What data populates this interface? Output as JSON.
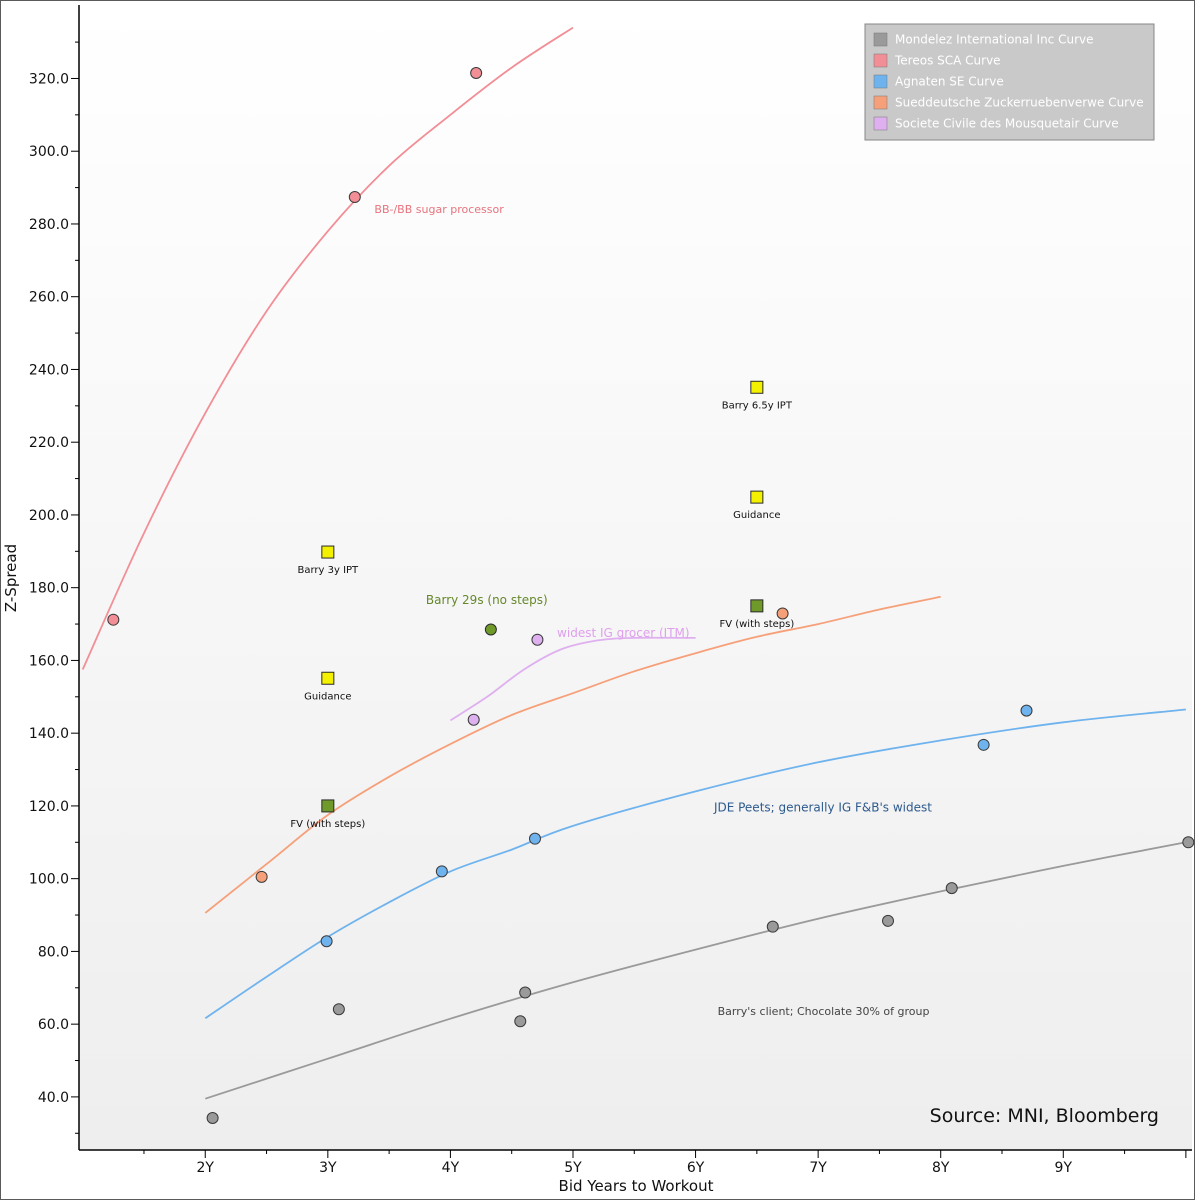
{
  "chart_data": {
    "type": "scatter",
    "xlabel": "Bid Years to Workout",
    "ylabel": "Z-Spread",
    "xlim": [
      0.97,
      10.05
    ],
    "ylim": [
      25.4,
      340.2
    ],
    "x_ticks": [
      {
        "value": 2,
        "label": "2Y"
      },
      {
        "value": 3,
        "label": "3Y"
      },
      {
        "value": 4,
        "label": "4Y"
      },
      {
        "value": 5,
        "label": "5Y"
      },
      {
        "value": 6,
        "label": "6Y"
      },
      {
        "value": 7,
        "label": "7Y"
      },
      {
        "value": 8,
        "label": "8Y"
      },
      {
        "value": 9,
        "label": "9Y"
      }
    ],
    "y_ticks": [
      {
        "value": 40,
        "label": "40.0"
      },
      {
        "value": 60,
        "label": "60.0"
      },
      {
        "value": 80,
        "label": "80.0"
      },
      {
        "value": 100,
        "label": "100.0"
      },
      {
        "value": 120,
        "label": "120.0"
      },
      {
        "value": 140,
        "label": "140.0"
      },
      {
        "value": 160,
        "label": "160.0"
      },
      {
        "value": 180,
        "label": "180.0"
      },
      {
        "value": 200,
        "label": "200.0"
      },
      {
        "value": 220,
        "label": "220.0"
      },
      {
        "value": 240,
        "label": "240.0"
      },
      {
        "value": 260,
        "label": "260.0"
      },
      {
        "value": 280,
        "label": "280.0"
      },
      {
        "value": 300,
        "label": "300.0"
      },
      {
        "value": 320,
        "label": "320.0"
      }
    ],
    "legend_position": "top-right",
    "series": [
      {
        "name": "Mondelez International Inc Curve",
        "color": "#9a9a9a",
        "points": [
          [
            2.06,
            34.2
          ],
          [
            3.09,
            64.1
          ],
          [
            4.57,
            60.8
          ],
          [
            4.61,
            68.7
          ],
          [
            6.63,
            86.8
          ],
          [
            7.57,
            88.4
          ],
          [
            8.09,
            97.4
          ],
          [
            10.02,
            110.0
          ]
        ],
        "curve": [
          [
            2.0,
            39.5
          ],
          [
            3.0,
            50.5
          ],
          [
            4.0,
            61.5
          ],
          [
            5.0,
            71.5
          ],
          [
            6.0,
            80.5
          ],
          [
            7.0,
            89.0
          ],
          [
            8.0,
            96.5
          ],
          [
            9.0,
            103.5
          ],
          [
            10.0,
            110.0
          ]
        ]
      },
      {
        "name": "Tereos SCA Curve",
        "color": "#f28e96",
        "points": [
          [
            1.25,
            171.2
          ],
          [
            3.22,
            287.4
          ],
          [
            4.21,
            321.5
          ]
        ],
        "curve": [
          [
            1.0,
            157.5
          ],
          [
            1.5,
            195.0
          ],
          [
            2.0,
            228.0
          ],
          [
            2.5,
            256.0
          ],
          [
            3.0,
            278.0
          ],
          [
            3.5,
            296.0
          ],
          [
            4.0,
            310.0
          ],
          [
            4.5,
            323.0
          ],
          [
            5.0,
            334.0
          ]
        ]
      },
      {
        "name": "Agnaten SE Curve",
        "color": "#6fb3ee",
        "points": [
          [
            2.99,
            82.8
          ],
          [
            3.93,
            102.0
          ],
          [
            4.69,
            111.0
          ],
          [
            8.35,
            136.8
          ],
          [
            8.7,
            146.2
          ]
        ],
        "curve": [
          [
            2.0,
            61.6
          ],
          [
            2.5,
            73.0
          ],
          [
            3.0,
            84.0
          ],
          [
            3.5,
            93.5
          ],
          [
            4.0,
            102.0
          ],
          [
            4.5,
            108.0
          ],
          [
            5.0,
            114.5
          ],
          [
            6.0,
            124.0
          ],
          [
            7.0,
            132.0
          ],
          [
            8.0,
            138.0
          ],
          [
            9.0,
            143.0
          ],
          [
            10.0,
            146.5
          ]
        ]
      },
      {
        "name": "Sueddeutsche Zuckerruebenverwe Curve",
        "color": "#f6a07a",
        "points": [
          [
            2.46,
            100.5
          ],
          [
            6.71,
            172.9
          ]
        ],
        "curve": [
          [
            2.0,
            90.6
          ],
          [
            2.5,
            104.0
          ],
          [
            3.0,
            117.5
          ],
          [
            3.5,
            128.0
          ],
          [
            4.0,
            137.0
          ],
          [
            4.5,
            145.0
          ],
          [
            5.0,
            151.0
          ],
          [
            5.5,
            157.0
          ],
          [
            6.0,
            162.0
          ],
          [
            6.5,
            166.5
          ],
          [
            7.0,
            170.0
          ],
          [
            7.5,
            174.0
          ],
          [
            8.0,
            177.5
          ]
        ]
      },
      {
        "name": "Societe Civile des Mousquetair Curve",
        "color": "#dfb0ef",
        "points": [
          [
            4.19,
            143.7
          ],
          [
            4.71,
            165.7
          ]
        ],
        "curve": [
          [
            4.0,
            143.5
          ],
          [
            4.3,
            150.0
          ],
          [
            4.6,
            157.5
          ],
          [
            4.9,
            163.0
          ],
          [
            5.2,
            165.5
          ],
          [
            5.5,
            166.2
          ],
          [
            6.0,
            166.2
          ]
        ]
      }
    ],
    "markers": [
      {
        "name": "barry-3y-ipt",
        "x": 3.0,
        "y": 189.8,
        "label": "Barry 3y IPT",
        "fill": "#f3f000"
      },
      {
        "name": "guidance-3y",
        "x": 3.0,
        "y": 155.1,
        "label": "Guidance",
        "fill": "#f3f000"
      },
      {
        "name": "fv-3y",
        "x": 3.0,
        "y": 120.0,
        "label": "FV (with steps)",
        "fill": "#6f9a2a"
      },
      {
        "name": "barry-6-5y-ipt",
        "x": 6.5,
        "y": 235.1,
        "label": "Barry 6.5y IPT",
        "fill": "#f3f000"
      },
      {
        "name": "guidance-6-5y",
        "x": 6.5,
        "y": 204.9,
        "label": "Guidance",
        "fill": "#f3f000"
      },
      {
        "name": "fv-6-5y",
        "x": 6.5,
        "y": 175.0,
        "label": "FV (with steps)",
        "fill": "#6f9a2a"
      }
    ],
    "barry_point": {
      "x": 4.33,
      "y": 168.5,
      "fill": "#6f9a2a"
    },
    "annotations": [
      {
        "name": "ann-sugar-processor",
        "text": "BB-/BB sugar processor",
        "x": 3.38,
        "y": 283.0,
        "color": "#e7737d",
        "size": 11
      },
      {
        "name": "ann-barry-29s",
        "text": "Barry 29s (no steps)",
        "x": 3.8,
        "y": 175.5,
        "color": "#66882a",
        "size": 12
      },
      {
        "name": "ann-ig-grocer",
        "text": "widest IG grocer (ITM)",
        "x": 4.87,
        "y": 166.5,
        "color": "#dfa0ee",
        "size": 12
      },
      {
        "name": "ann-jde-peets",
        "text": "JDE Peets; generally IG F&B's widest",
        "x": 6.15,
        "y": 118.5,
        "color": "#2d5a8e",
        "size": 12
      },
      {
        "name": "ann-barry-client",
        "text": "Barry's client; Chocolate 30% of group",
        "x": 6.18,
        "y": 62.5,
        "color": "#444444",
        "size": 11
      }
    ],
    "source": "Source: MNI, Bloomberg"
  }
}
